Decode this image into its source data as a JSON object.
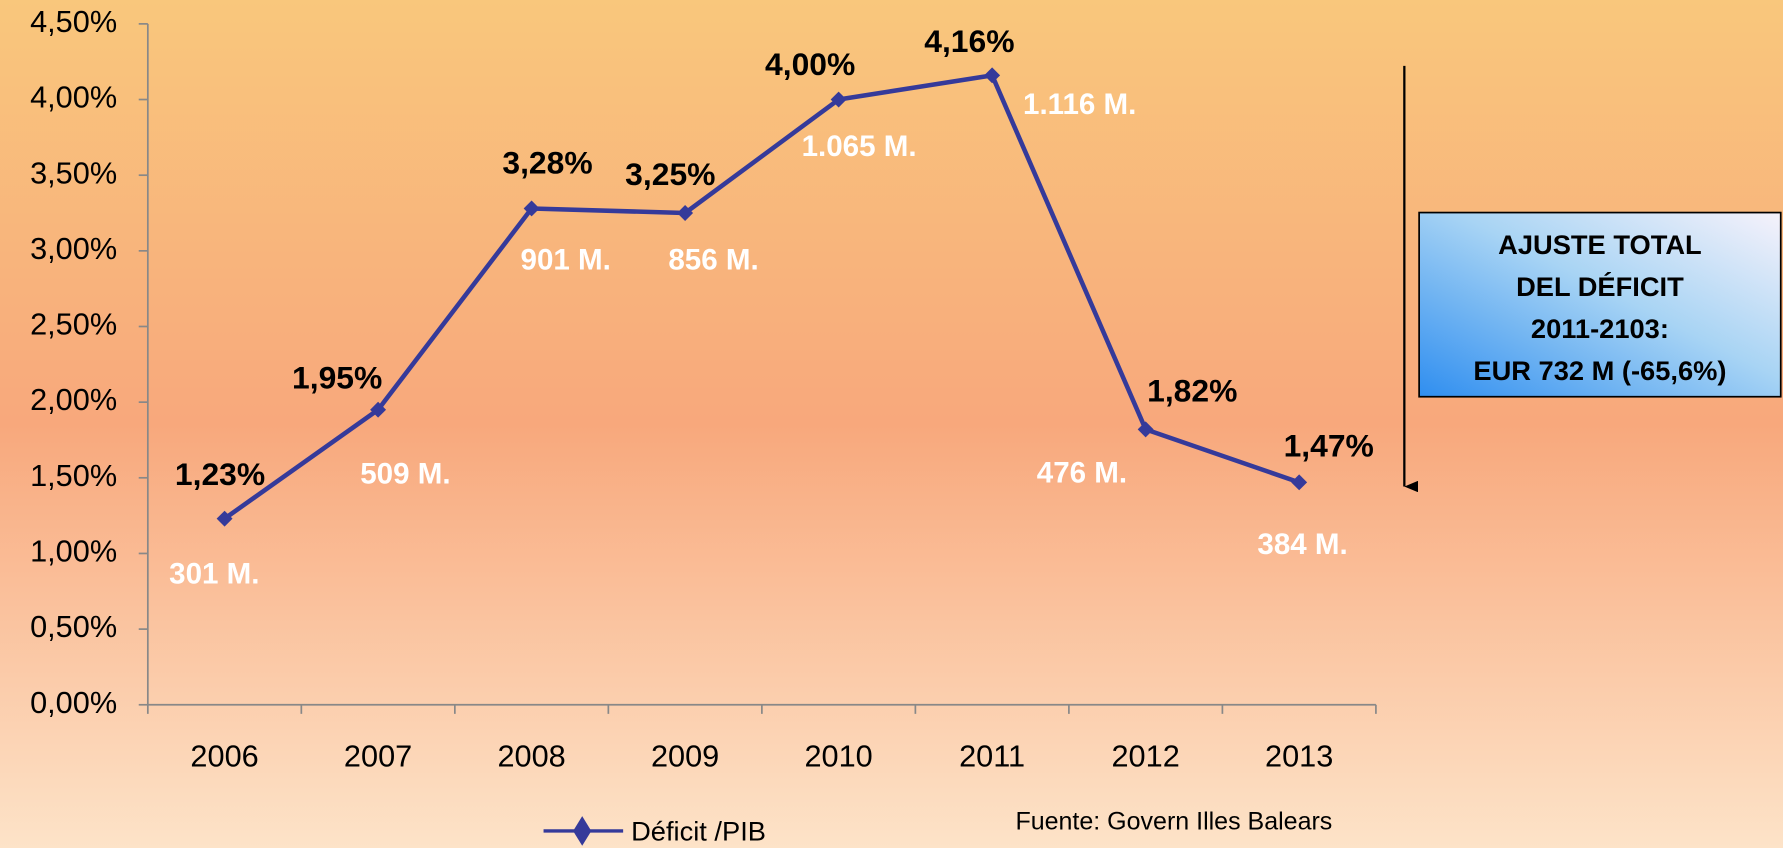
{
  "chart_data": {
    "type": "line",
    "categories": [
      "2006",
      "2007",
      "2008",
      "2009",
      "2010",
      "2011",
      "2012",
      "2013"
    ],
    "series": [
      {
        "name": "Déficit /PIB",
        "color": "#353a9a",
        "values": [
          1.23,
          1.95,
          3.28,
          3.25,
          4.0,
          4.16,
          1.82,
          1.47
        ],
        "value_labels": [
          "1,23%",
          "1,95%",
          "3,28%",
          "3,25%",
          "4,00%",
          "4,16%",
          "1,82%",
          "1,47%"
        ]
      }
    ],
    "annotations": [
      "301 M.",
      "509 M.",
      "901 M.",
      "856 M.",
      "1.065 M.",
      "1.116 M.",
      "476 M.",
      "384 M."
    ],
    "ylim": [
      0,
      4.5
    ],
    "yticks": [
      {
        "value": 0,
        "label": "0,00%"
      },
      {
        "value": 0.5,
        "label": "0,50%"
      },
      {
        "value": 1,
        "label": "1,00%"
      },
      {
        "value": 1.5,
        "label": "1,50%"
      },
      {
        "value": 2,
        "label": "2,00%"
      },
      {
        "value": 2.5,
        "label": "2,50%"
      },
      {
        "value": 3,
        "label": "3,00%"
      },
      {
        "value": 3.5,
        "label": "3,50%"
      },
      {
        "value": 4,
        "label": "4,00%"
      },
      {
        "value": 4.5,
        "label": "4,50%"
      }
    ],
    "box_text": [
      "AJUSTE TOTAL",
      "DEL DÉFICIT",
      "2011-2103:",
      "EUR 732 M (-65,6%)"
    ],
    "source": "Fuente: Govern Illes Balears",
    "legend": "bottom"
  }
}
